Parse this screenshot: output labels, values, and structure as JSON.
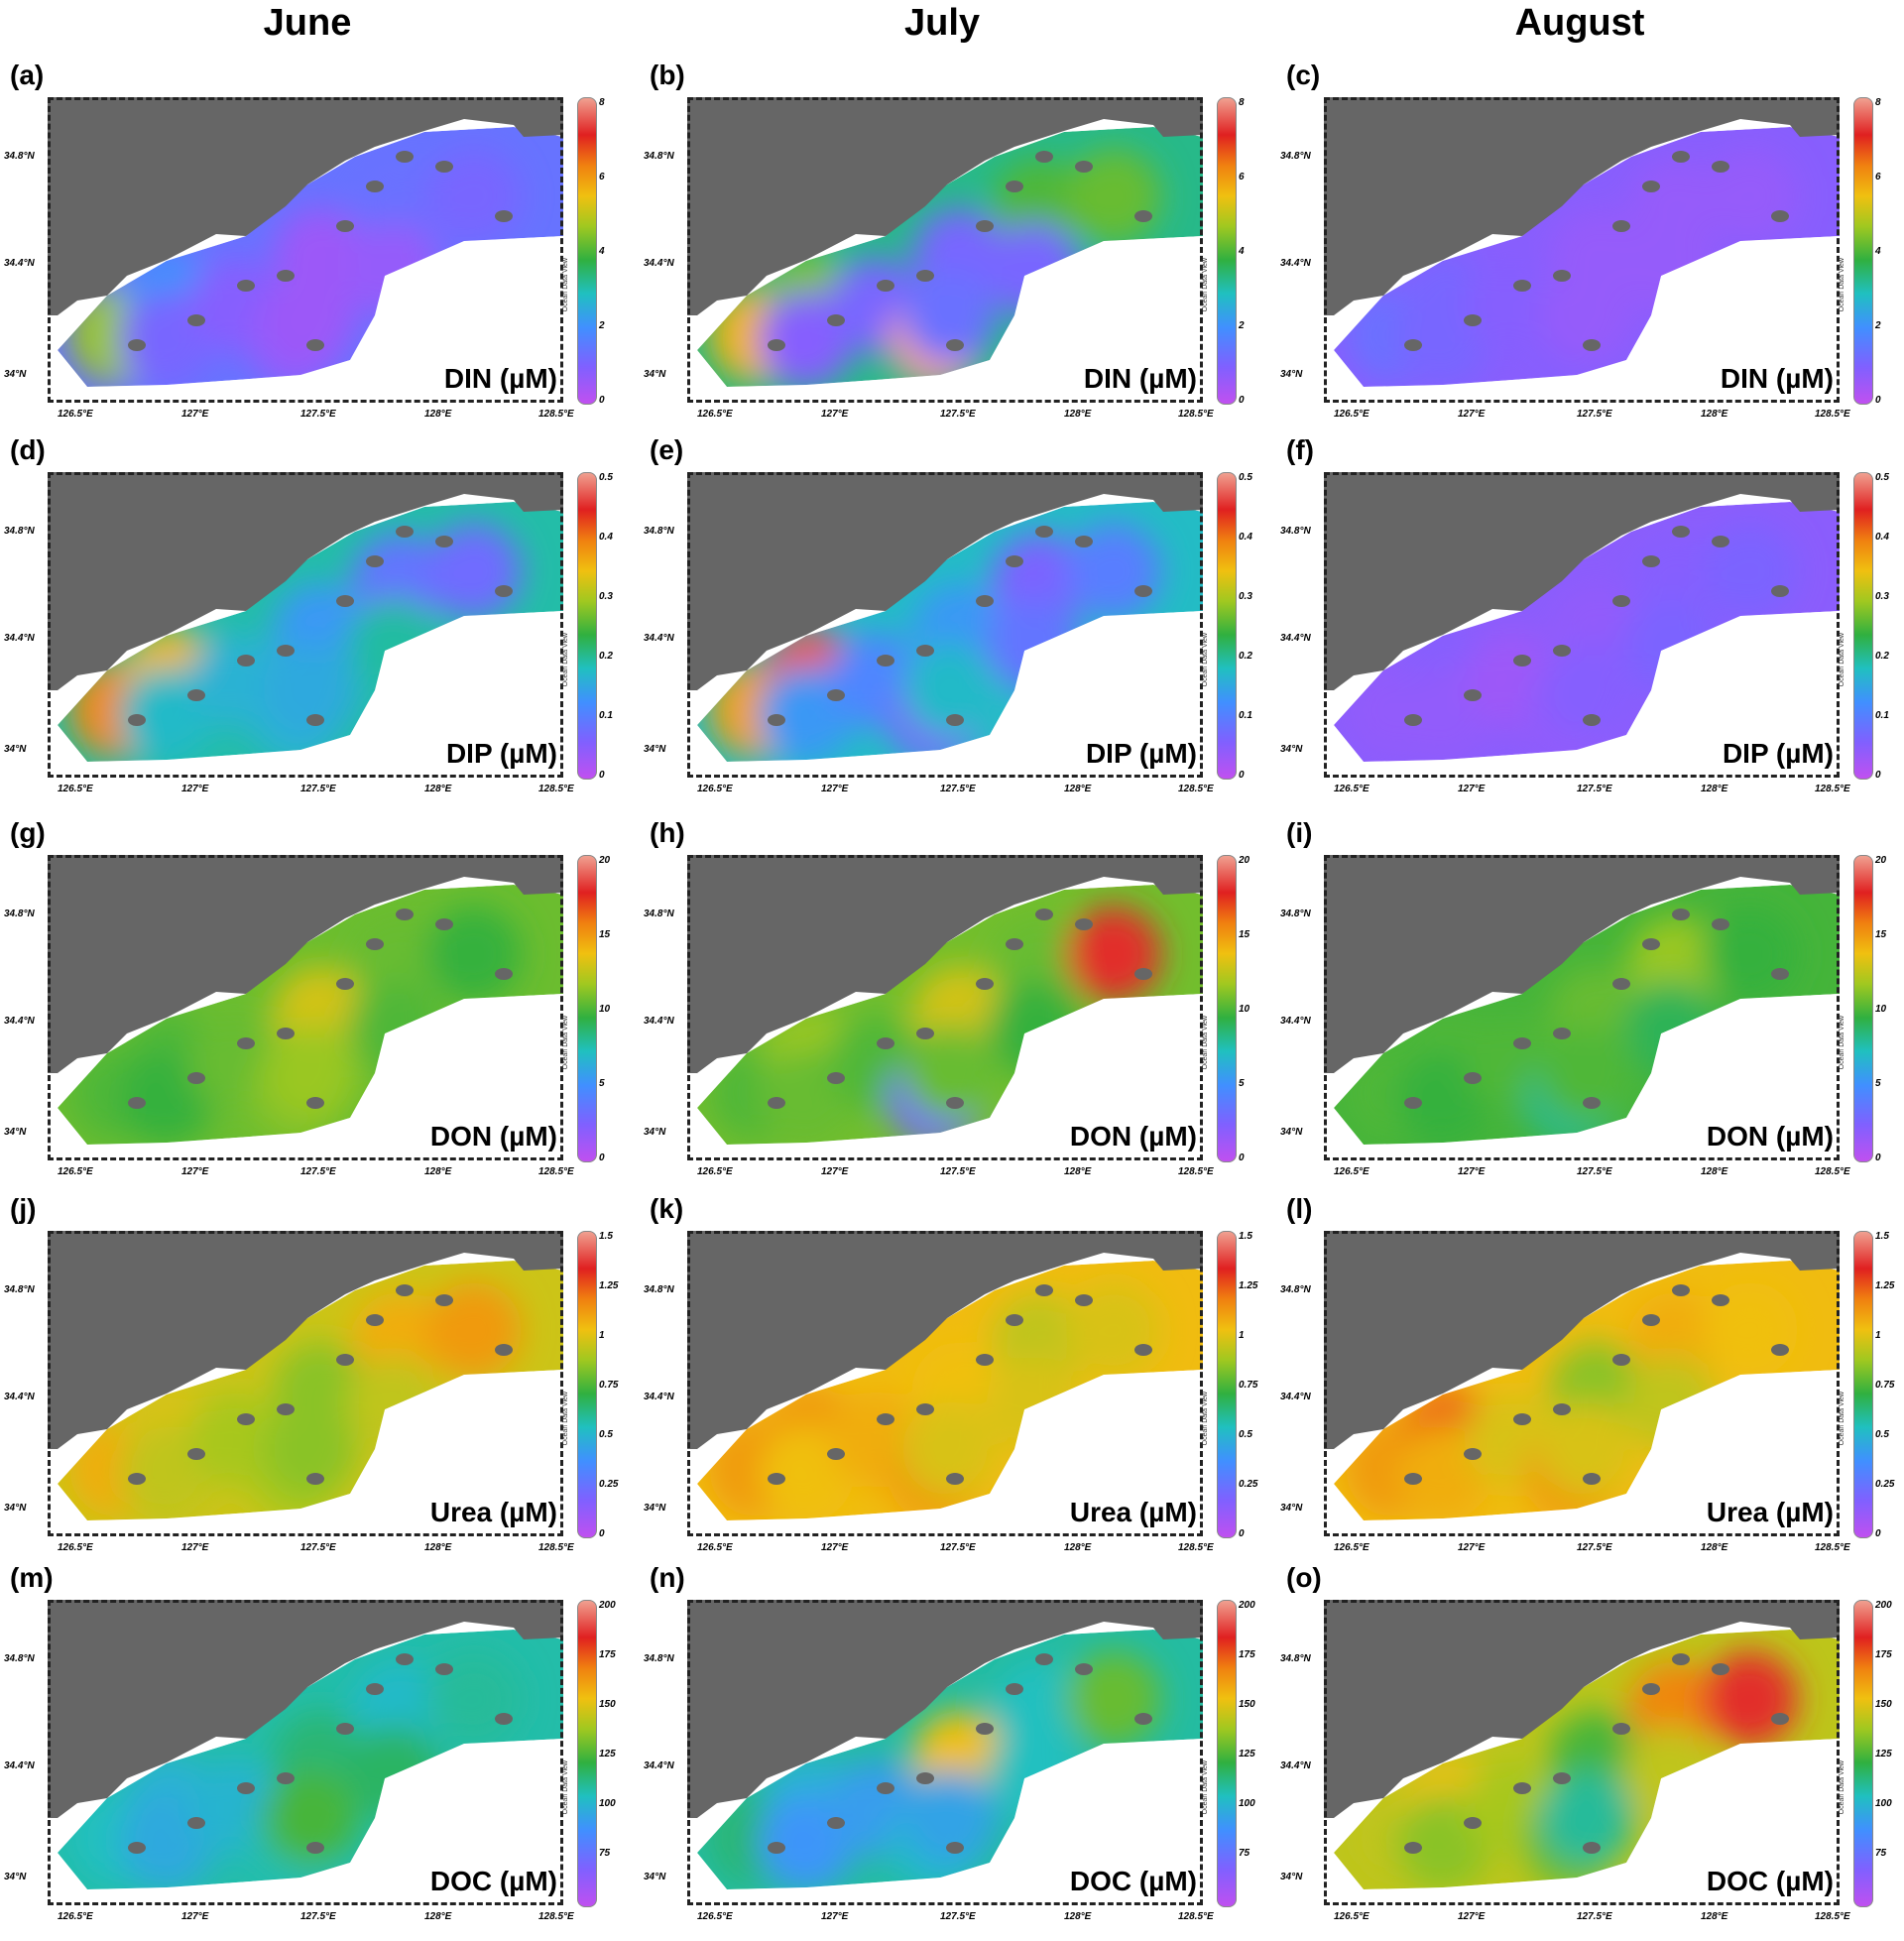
{
  "columns": [
    "June",
    "July",
    "August"
  ],
  "lat_ticks": [
    "34.8°N",
    "34.4°N",
    "34°N"
  ],
  "lon_ticks": [
    "126.5°E",
    "127°E",
    "127.5°E",
    "128°E",
    "128.5°E"
  ],
  "odv_credit": "Ocean Data View",
  "colors": {
    "land": "#666666",
    "water": "#ffffff",
    "colormap": [
      "#c050f0",
      "#8060ff",
      "#4090ff",
      "#20c0c0",
      "#30b040",
      "#a0c820",
      "#f0c010",
      "#f08010",
      "#e02020",
      "#f0a090"
    ]
  },
  "rows": [
    {
      "variable": "DIN (µM)",
      "colorbar": {
        "min": 0,
        "max": 8,
        "ticks": [
          "8",
          "6",
          "4",
          "2",
          "0"
        ]
      }
    },
    {
      "variable": "DIP (µM)",
      "colorbar": {
        "min": 0,
        "max": 0.5,
        "ticks": [
          "0.5",
          "0.4",
          "0.3",
          "0.2",
          "0.1",
          "0"
        ]
      }
    },
    {
      "variable": "DON (µM)",
      "colorbar": {
        "min": 0,
        "max": 20,
        "ticks": [
          "20",
          "15",
          "10",
          "5",
          "0"
        ]
      }
    },
    {
      "variable": "Urea (µM)",
      "colorbar": {
        "min": 0,
        "max": 1.5,
        "ticks": [
          "1.5",
          "1.25",
          "1",
          "0.75",
          "0.5",
          "0.25",
          "0"
        ]
      }
    },
    {
      "variable": "DOC (µM)",
      "colorbar": {
        "min": 50,
        "max": 200,
        "ticks": [
          "200",
          "175",
          "150",
          "125",
          "100",
          "75"
        ]
      }
    }
  ],
  "panels": [
    {
      "label": "(a)",
      "row": 0,
      "col": 0,
      "values": [
        4.4,
        1.8,
        1.0,
        0.8,
        0.6,
        0.5,
        0.5,
        1.2,
        1.0,
        0.6
      ]
    },
    {
      "label": "(b)",
      "row": 0,
      "col": 1,
      "values": [
        5.5,
        4.2,
        0.8,
        1.0,
        8.0,
        1.0,
        1.2,
        3.8,
        4.0,
        1.0
      ]
    },
    {
      "label": "(c)",
      "row": 0,
      "col": 2,
      "values": [
        1.2,
        1.0,
        1.0,
        0.8,
        0.8,
        0.6,
        0.6,
        0.6,
        0.6,
        0.6
      ]
    },
    {
      "label": "(d)",
      "row": 1,
      "col": 0,
      "values": [
        0.38,
        0.34,
        0.16,
        0.15,
        0.15,
        0.12,
        0.14,
        0.08,
        0.07,
        0.18
      ]
    },
    {
      "label": "(e)",
      "row": 1,
      "col": 1,
      "values": [
        0.36,
        0.47,
        0.12,
        0.1,
        0.06,
        0.12,
        0.16,
        0.06,
        0.09,
        0.08
      ]
    },
    {
      "label": "(f)",
      "row": 1,
      "col": 2,
      "values": [
        0.04,
        0.05,
        0.04,
        0.03,
        0.04,
        0.04,
        0.05,
        0.05,
        0.06,
        0.06
      ]
    },
    {
      "label": "(g)",
      "row": 2,
      "col": 0,
      "values": [
        9.5,
        9.5,
        9.0,
        10.0,
        10.5,
        12.5,
        11.0,
        10.0,
        9.0,
        9.5
      ]
    },
    {
      "label": "(h)",
      "row": 2,
      "col": 1,
      "values": [
        9.5,
        11.0,
        10.0,
        9.5,
        2.5,
        12.5,
        10.0,
        10.0,
        18.0,
        9.0
      ]
    },
    {
      "label": "(i)",
      "row": 2,
      "col": 2,
      "values": [
        9.5,
        9.5,
        9.0,
        9.5,
        7.5,
        10.0,
        9.5,
        11.0,
        9.0,
        8.5
      ]
    },
    {
      "label": "(j)",
      "row": 3,
      "col": 0,
      "values": [
        1.05,
        0.95,
        0.9,
        0.85,
        0.85,
        0.8,
        0.8,
        1.05,
        1.1,
        0.9
      ]
    },
    {
      "label": "(k)",
      "row": 3,
      "col": 1,
      "values": [
        1.1,
        1.1,
        1.0,
        1.05,
        1.1,
        1.0,
        0.95,
        0.9,
        0.95,
        0.95
      ]
    },
    {
      "label": "(l)",
      "row": 3,
      "col": 2,
      "values": [
        1.1,
        1.2,
        1.05,
        0.95,
        1.1,
        0.8,
        0.95,
        1.05,
        1.0,
        0.9
      ]
    },
    {
      "label": "(m)",
      "row": 4,
      "col": 0,
      "values": [
        100,
        95,
        92,
        96,
        102,
        110,
        120,
        98,
        105,
        112
      ]
    },
    {
      "label": "(n)",
      "row": 4,
      "col": 1,
      "values": [
        110,
        95,
        85,
        88,
        98,
        150,
        90,
        100,
        125,
        100
      ]
    },
    {
      "label": "(o)",
      "row": 4,
      "col": 2,
      "values": [
        140,
        148,
        130,
        135,
        125,
        120,
        105,
        165,
        185,
        140
      ]
    }
  ]
}
